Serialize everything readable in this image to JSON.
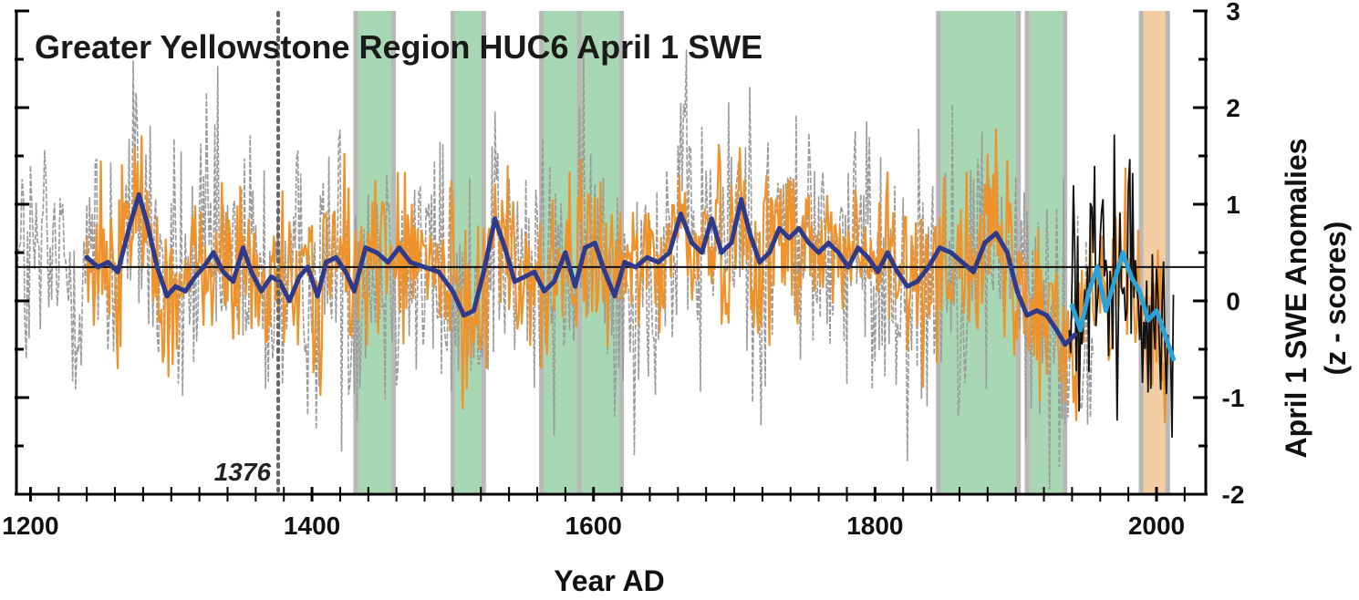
{
  "chart_data": {
    "type": "line",
    "title": "Greater Yellowstone Region HUC6 April 1 SWE",
    "xlabel": "Year AD",
    "ylabel": [
      "April 1 SWE Anomalies",
      "(z - scores)"
    ],
    "xlim": [
      1190,
      2035
    ],
    "ylim": [
      -2,
      3
    ],
    "x_ticks": [
      1200,
      1400,
      1600,
      1800,
      2000
    ],
    "y_ticks": [
      -2,
      -1,
      0,
      1,
      2,
      3
    ],
    "y_tick_labels": [
      "-2",
      "-1",
      "0",
      "1",
      "2",
      "3"
    ],
    "x_minor_step": 20,
    "y_axis_side": "right",
    "grid": false,
    "mean_line": 0.35,
    "annotation": {
      "x": 1376,
      "label": "1376",
      "style": "dotted-vertical"
    },
    "colors": {
      "raw_reconstruction": "#9a9a9a",
      "annual_reconstruction": "#f0922a",
      "observed_annual": "#111111",
      "smoothed_reconstruction": "#2e3a8c",
      "smoothed_observed": "#2aa3dc",
      "drought_shading": "#9fd3ab",
      "recent_shading": "#f2c89a",
      "shading_border": "#b8b8b8"
    },
    "shaded_periods": [
      {
        "start": 1431,
        "end": 1458,
        "kind": "drought"
      },
      {
        "start": 1500,
        "end": 1522,
        "kind": "drought"
      },
      {
        "start": 1563,
        "end": 1590,
        "kind": "drought"
      },
      {
        "start": 1590,
        "end": 1620,
        "kind": "drought"
      },
      {
        "start": 1845,
        "end": 1902,
        "kind": "drought"
      },
      {
        "start": 1908,
        "end": 1935,
        "kind": "drought"
      },
      {
        "start": 1989,
        "end": 2008,
        "kind": "recent"
      }
    ],
    "series": [
      {
        "role": "smoothed_reconstruction",
        "x": [
          1240,
          1248,
          1255,
          1262,
          1270,
          1277,
          1283,
          1290,
          1297,
          1303,
          1310,
          1317,
          1323,
          1330,
          1337,
          1344,
          1351,
          1357,
          1364,
          1371,
          1377,
          1384,
          1391,
          1397,
          1404,
          1410,
          1417,
          1424,
          1430,
          1438,
          1446,
          1454,
          1462,
          1470,
          1480,
          1490,
          1500,
          1508,
          1515,
          1522,
          1530,
          1537,
          1544,
          1551,
          1558,
          1565,
          1572,
          1580,
          1587,
          1594,
          1601,
          1608,
          1615,
          1622,
          1630,
          1638,
          1646,
          1654,
          1662,
          1670,
          1677,
          1684,
          1691,
          1698,
          1705,
          1711,
          1718,
          1725,
          1732,
          1739,
          1746,
          1753,
          1760,
          1767,
          1774,
          1781,
          1788,
          1795,
          1802,
          1809,
          1816,
          1823,
          1830,
          1838,
          1846,
          1854,
          1862,
          1870,
          1878,
          1886,
          1894,
          1901,
          1908,
          1915,
          1922,
          1929,
          1935,
          1942
        ],
        "y": [
          0.45,
          0.35,
          0.4,
          0.3,
          0.75,
          1.1,
          0.8,
          0.35,
          0.05,
          0.15,
          0.1,
          0.25,
          0.35,
          0.5,
          0.3,
          0.2,
          0.55,
          0.3,
          0.1,
          0.25,
          0.2,
          0.0,
          0.25,
          0.35,
          0.05,
          0.4,
          0.45,
          0.3,
          0.1,
          0.55,
          0.5,
          0.4,
          0.55,
          0.4,
          0.35,
          0.3,
          0.1,
          -0.15,
          -0.1,
          0.3,
          0.85,
          0.55,
          0.2,
          0.25,
          0.3,
          0.1,
          0.2,
          0.5,
          0.15,
          0.55,
          0.6,
          0.3,
          0.05,
          0.4,
          0.35,
          0.45,
          0.4,
          0.5,
          0.9,
          0.6,
          0.5,
          0.85,
          0.5,
          0.6,
          1.05,
          0.7,
          0.4,
          0.5,
          0.75,
          0.65,
          0.75,
          0.6,
          0.5,
          0.6,
          0.5,
          0.35,
          0.55,
          0.45,
          0.3,
          0.5,
          0.3,
          0.15,
          0.2,
          0.35,
          0.55,
          0.5,
          0.4,
          0.3,
          0.6,
          0.7,
          0.5,
          0.1,
          -0.15,
          -0.1,
          -0.15,
          -0.3,
          -0.45,
          -0.35
        ]
      },
      {
        "role": "smoothed_observed",
        "x": [
          1940,
          1946,
          1952,
          1958,
          1964,
          1970,
          1976,
          1982,
          1988,
          1994,
          2000,
          2006,
          2012
        ],
        "y": [
          -0.05,
          -0.3,
          0.1,
          0.35,
          -0.1,
          0.2,
          0.5,
          0.25,
          0.1,
          -0.2,
          -0.1,
          -0.35,
          -0.6
        ]
      }
    ]
  }
}
